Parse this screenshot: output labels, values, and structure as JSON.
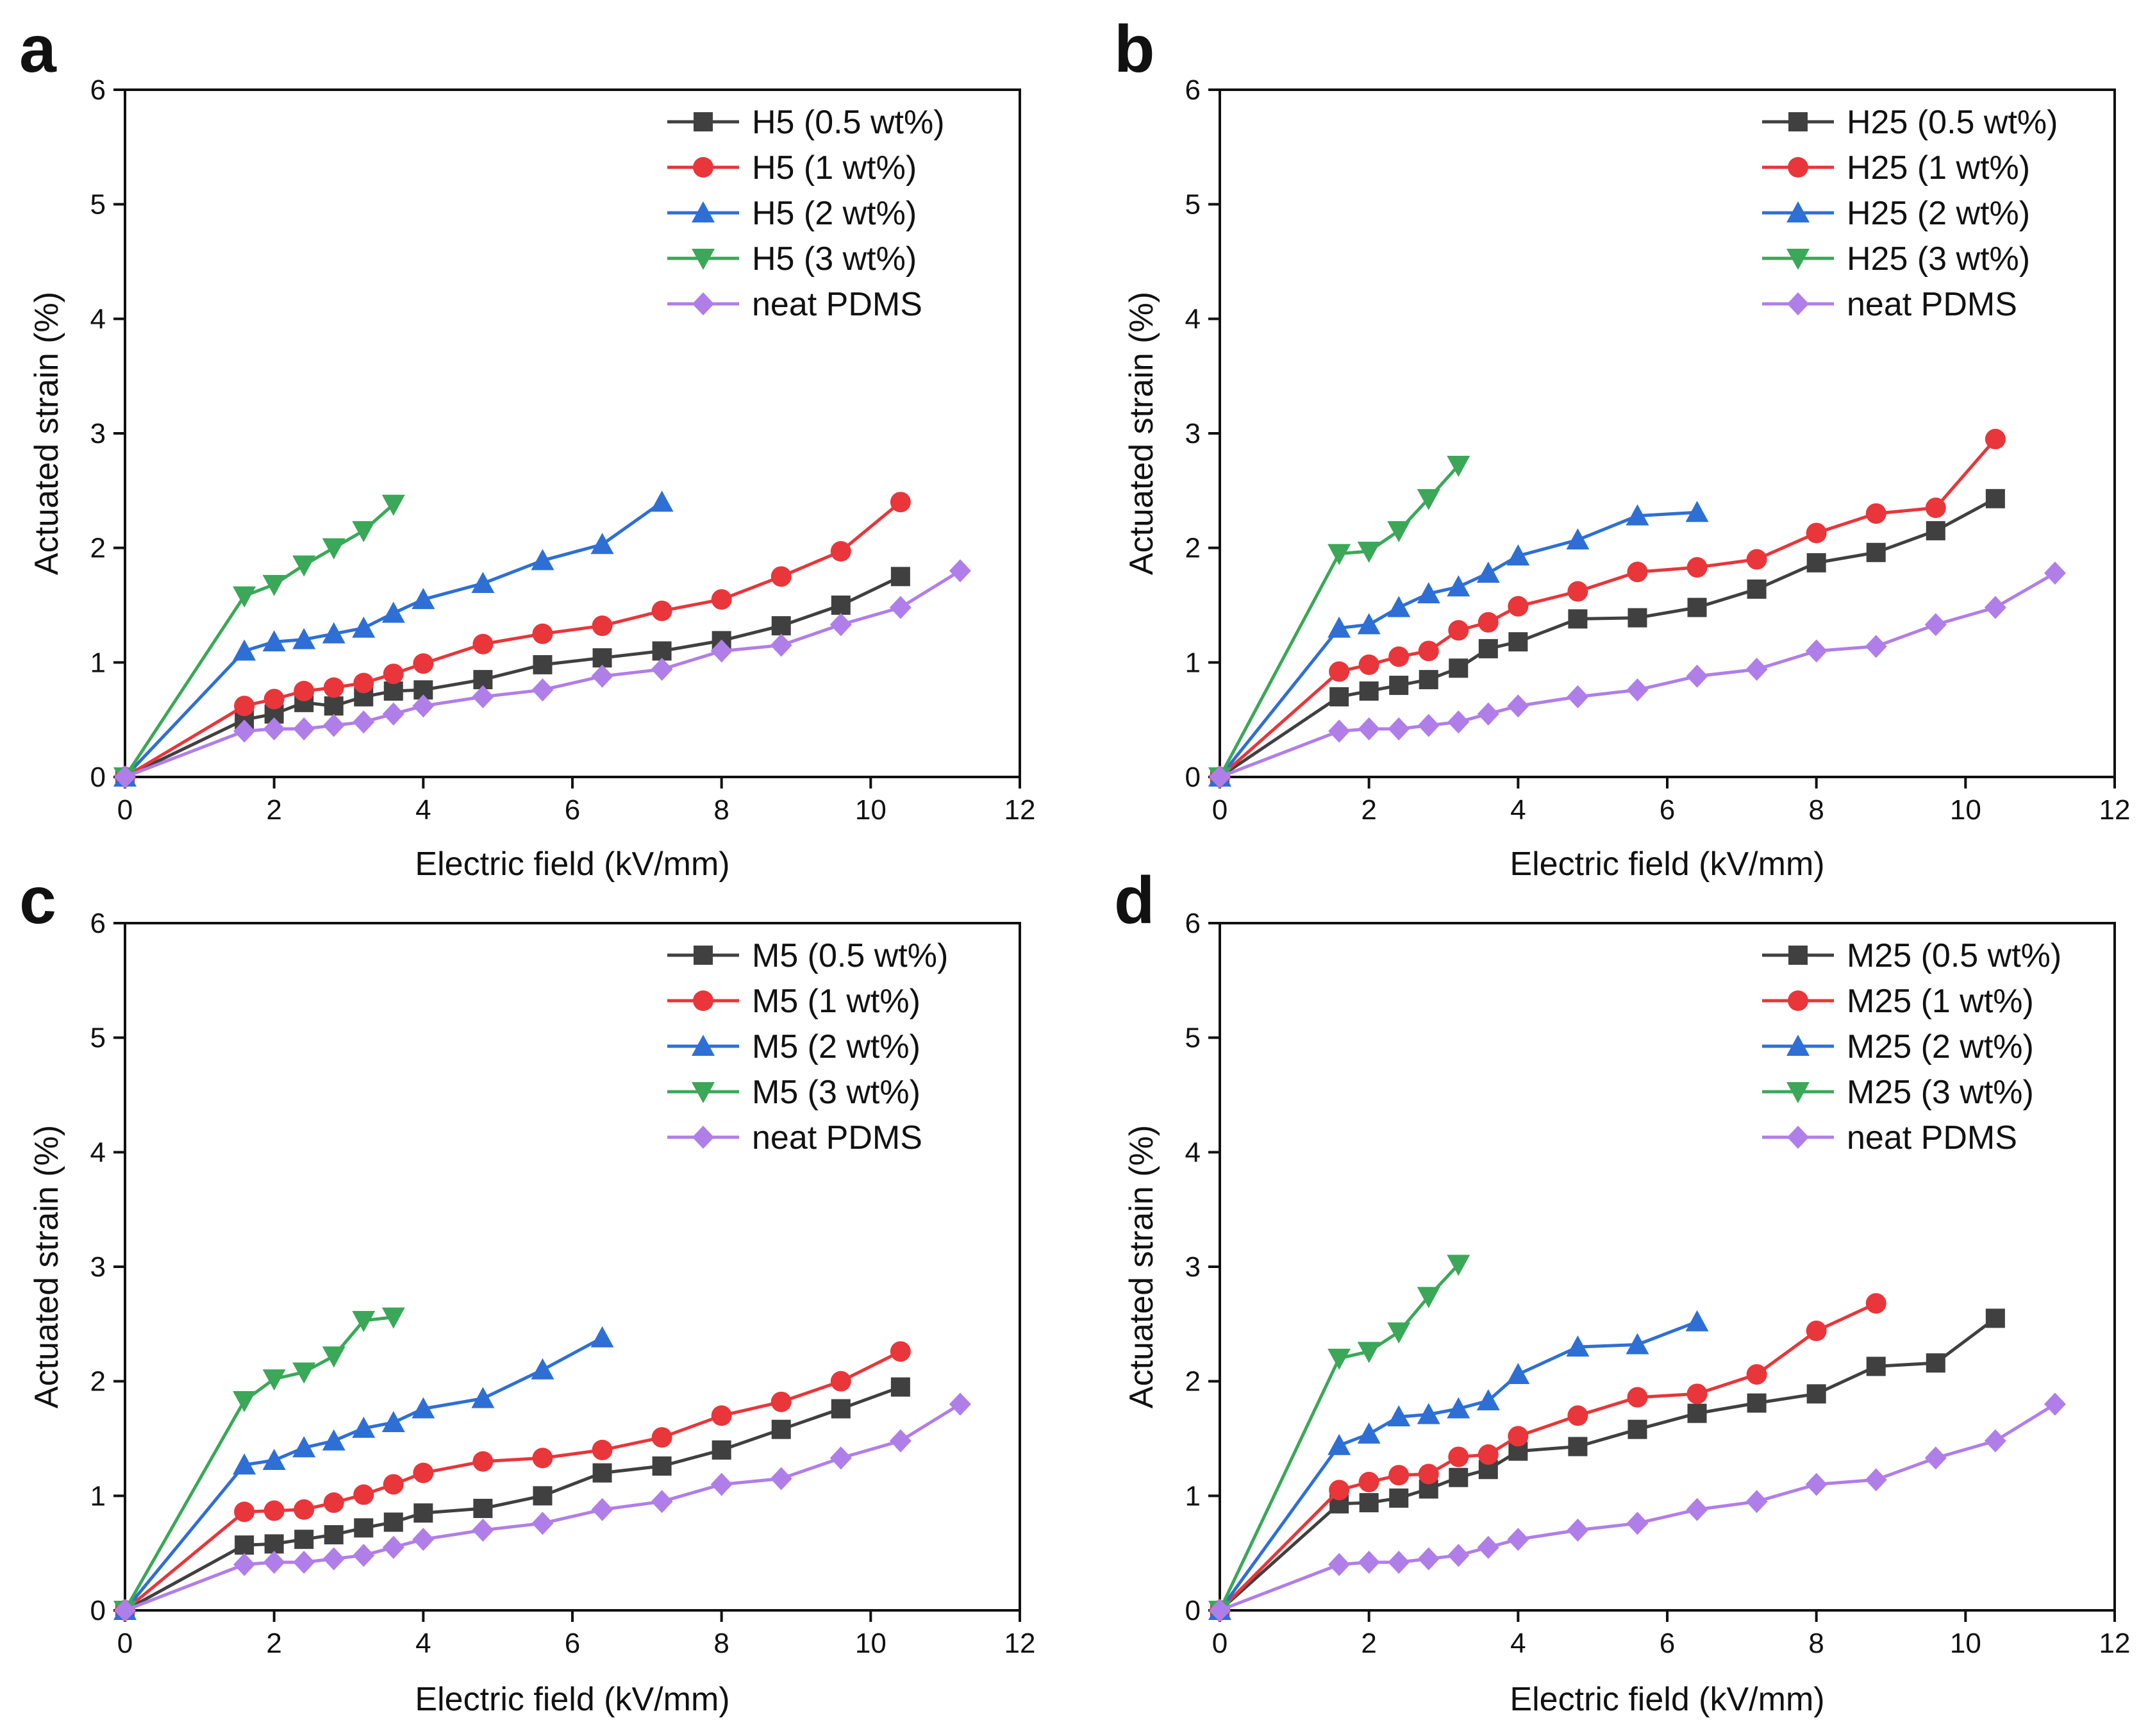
{
  "figure": {
    "background": "#ffffff"
  },
  "chart_data": [
    {
      "panel": "a",
      "type": "line",
      "xlabel": "Electric field (kV/mm)",
      "ylabel": "Actuated strain (%)",
      "xlim": [
        0,
        12
      ],
      "ylim": [
        0,
        6
      ],
      "xticks": [
        0,
        2,
        4,
        6,
        8,
        10,
        12
      ],
      "yticks": [
        0,
        1,
        2,
        3,
        4,
        5,
        6
      ],
      "legend_position": "top-right",
      "series": [
        {
          "name": "H5 (0.5 wt%)",
          "color": "#404040",
          "marker": "square",
          "x": [
            0,
            1.6,
            2,
            2.4,
            2.8,
            3.2,
            3.6,
            4,
            4.8,
            5.6,
            6.4,
            7.2,
            8,
            8.8,
            9.6,
            10.4
          ],
          "y": [
            0,
            0.5,
            0.55,
            0.65,
            0.62,
            0.7,
            0.75,
            0.76,
            0.85,
            0.98,
            1.04,
            1.1,
            1.19,
            1.32,
            1.5,
            1.75
          ]
        },
        {
          "name": "H5 (1 wt%)",
          "color": "#e8363a",
          "marker": "circle",
          "x": [
            0,
            1.6,
            2,
            2.4,
            2.8,
            3.2,
            3.6,
            4,
            4.8,
            5.6,
            6.4,
            7.2,
            8,
            8.8,
            9.6,
            10.4
          ],
          "y": [
            0,
            0.62,
            0.68,
            0.75,
            0.78,
            0.82,
            0.9,
            0.99,
            1.16,
            1.25,
            1.32,
            1.45,
            1.55,
            1.75,
            1.97,
            2.4
          ]
        },
        {
          "name": "H5 (2 wt%)",
          "color": "#2e6fd6",
          "marker": "triangle-up",
          "x": [
            0,
            1.6,
            2,
            2.4,
            2.8,
            3.2,
            3.6,
            4,
            4.8,
            5.6,
            6.4,
            7.2
          ],
          "y": [
            0,
            1.1,
            1.18,
            1.2,
            1.25,
            1.3,
            1.43,
            1.55,
            1.69,
            1.89,
            2.03,
            2.4
          ]
        },
        {
          "name": "H5 (3 wt%)",
          "color": "#3aa858",
          "marker": "triangle-down",
          "x": [
            0,
            1.6,
            2,
            2.4,
            2.8,
            3.2,
            3.6
          ],
          "y": [
            0,
            1.58,
            1.68,
            1.85,
            2.0,
            2.15,
            2.38
          ]
        },
        {
          "name": "neat PDMS",
          "color": "#b07ee8",
          "marker": "diamond",
          "x": [
            0,
            1.6,
            2,
            2.4,
            2.8,
            3.2,
            3.6,
            4,
            4.8,
            5.6,
            6.4,
            7.2,
            8,
            8.8,
            9.6,
            10.4,
            11.2
          ],
          "y": [
            0,
            0.4,
            0.42,
            0.42,
            0.45,
            0.48,
            0.55,
            0.62,
            0.7,
            0.76,
            0.88,
            0.94,
            1.1,
            1.15,
            1.33,
            1.48,
            1.8
          ]
        }
      ]
    },
    {
      "panel": "b",
      "type": "line",
      "xlabel": "Electric field (kV/mm)",
      "ylabel": "Actuated strain (%)",
      "xlim": [
        0,
        12
      ],
      "ylim": [
        0,
        6
      ],
      "xticks": [
        0,
        2,
        4,
        6,
        8,
        10,
        12
      ],
      "yticks": [
        0,
        1,
        2,
        3,
        4,
        5,
        6
      ],
      "legend_position": "top-right",
      "series": [
        {
          "name": "H25 (0.5 wt%)",
          "color": "#404040",
          "marker": "square",
          "x": [
            0,
            1.6,
            2,
            2.4,
            2.8,
            3.2,
            3.6,
            4,
            4.8,
            5.6,
            6.4,
            7.2,
            8,
            8.8,
            9.6,
            10.4
          ],
          "y": [
            0,
            0.7,
            0.75,
            0.8,
            0.85,
            0.95,
            1.12,
            1.18,
            1.38,
            1.39,
            1.48,
            1.64,
            1.87,
            1.96,
            2.15,
            2.43
          ]
        },
        {
          "name": "H25 (1 wt%)",
          "color": "#e8363a",
          "marker": "circle",
          "x": [
            0,
            1.6,
            2,
            2.4,
            2.8,
            3.2,
            3.6,
            4,
            4.8,
            5.6,
            6.4,
            7.2,
            8,
            8.8,
            9.6,
            10.4
          ],
          "y": [
            0,
            0.92,
            0.98,
            1.05,
            1.1,
            1.28,
            1.35,
            1.49,
            1.62,
            1.79,
            1.83,
            1.9,
            2.13,
            2.3,
            2.35,
            2.95
          ]
        },
        {
          "name": "H25 (2 wt%)",
          "color": "#2e6fd6",
          "marker": "triangle-up",
          "x": [
            0,
            1.6,
            2,
            2.4,
            2.8,
            3.2,
            3.6,
            4,
            4.8,
            5.6,
            6.4
          ],
          "y": [
            0,
            1.3,
            1.33,
            1.48,
            1.6,
            1.66,
            1.78,
            1.93,
            2.07,
            2.28,
            2.31
          ]
        },
        {
          "name": "H25 (3 wt%)",
          "color": "#3aa858",
          "marker": "triangle-down",
          "x": [
            0,
            1.6,
            2,
            2.4,
            2.8,
            3.2
          ],
          "y": [
            0,
            1.95,
            1.97,
            2.15,
            2.43,
            2.72
          ]
        },
        {
          "name": "neat PDMS",
          "color": "#b07ee8",
          "marker": "diamond",
          "x": [
            0,
            1.6,
            2,
            2.4,
            2.8,
            3.2,
            3.6,
            4,
            4.8,
            5.6,
            6.4,
            7.2,
            8,
            8.8,
            9.6,
            10.4,
            11.2
          ],
          "y": [
            0,
            0.4,
            0.42,
            0.42,
            0.45,
            0.48,
            0.55,
            0.62,
            0.7,
            0.76,
            0.88,
            0.94,
            1.1,
            1.14,
            1.33,
            1.48,
            1.78
          ]
        }
      ]
    },
    {
      "panel": "c",
      "type": "line",
      "xlabel": "Electric field (kV/mm)",
      "ylabel": "Actuated strain (%)",
      "xlim": [
        0,
        12
      ],
      "ylim": [
        0,
        6
      ],
      "xticks": [
        0,
        2,
        4,
        6,
        8,
        10,
        12
      ],
      "yticks": [
        0,
        1,
        2,
        3,
        4,
        5,
        6
      ],
      "legend_position": "top-right",
      "series": [
        {
          "name": "M5 (0.5 wt%)",
          "color": "#404040",
          "marker": "square",
          "x": [
            0,
            1.6,
            2,
            2.4,
            2.8,
            3.2,
            3.6,
            4,
            4.8,
            5.6,
            6.4,
            7.2,
            8,
            8.8,
            9.6,
            10.4
          ],
          "y": [
            0,
            0.57,
            0.58,
            0.62,
            0.66,
            0.72,
            0.77,
            0.85,
            0.89,
            1.0,
            1.2,
            1.26,
            1.4,
            1.58,
            1.76,
            1.95
          ]
        },
        {
          "name": "M5 (1 wt%)",
          "color": "#e8363a",
          "marker": "circle",
          "x": [
            0,
            1.6,
            2,
            2.4,
            2.8,
            3.2,
            3.6,
            4,
            4.8,
            5.6,
            6.4,
            7.2,
            8,
            8.8,
            9.6,
            10.4
          ],
          "y": [
            0,
            0.86,
            0.87,
            0.88,
            0.94,
            1.01,
            1.1,
            1.2,
            1.3,
            1.33,
            1.4,
            1.51,
            1.7,
            1.82,
            2.0,
            2.26
          ]
        },
        {
          "name": "M5 (2 wt%)",
          "color": "#2e6fd6",
          "marker": "triangle-up",
          "x": [
            0,
            1.6,
            2,
            2.4,
            2.8,
            3.2,
            3.6,
            4,
            4.8,
            5.6,
            6.4
          ],
          "y": [
            0,
            1.27,
            1.31,
            1.42,
            1.48,
            1.59,
            1.64,
            1.76,
            1.85,
            2.1,
            2.38
          ]
        },
        {
          "name": "M5 (3 wt%)",
          "color": "#3aa858",
          "marker": "triangle-down",
          "x": [
            0,
            1.6,
            2,
            2.4,
            2.8,
            3.2,
            3.6
          ],
          "y": [
            0,
            1.83,
            2.02,
            2.08,
            2.22,
            2.53,
            2.56
          ]
        },
        {
          "name": "neat PDMS",
          "color": "#b07ee8",
          "marker": "diamond",
          "x": [
            0,
            1.6,
            2,
            2.4,
            2.8,
            3.2,
            3.6,
            4,
            4.8,
            5.6,
            6.4,
            7.2,
            8,
            8.8,
            9.6,
            10.4,
            11.2
          ],
          "y": [
            0,
            0.4,
            0.42,
            0.42,
            0.45,
            0.48,
            0.55,
            0.62,
            0.7,
            0.76,
            0.88,
            0.95,
            1.1,
            1.15,
            1.33,
            1.48,
            1.8
          ]
        }
      ]
    },
    {
      "panel": "d",
      "type": "line",
      "xlabel": "Electric field (kV/mm)",
      "ylabel": "Actuated strain (%)",
      "xlim": [
        0,
        12
      ],
      "ylim": [
        0,
        6
      ],
      "xticks": [
        0,
        2,
        4,
        6,
        8,
        10,
        12
      ],
      "yticks": [
        0,
        1,
        2,
        3,
        4,
        5,
        6
      ],
      "legend_position": "top-right",
      "series": [
        {
          "name": "M25 (0.5 wt%)",
          "color": "#404040",
          "marker": "square",
          "x": [
            0,
            1.6,
            2,
            2.4,
            2.8,
            3.2,
            3.6,
            4,
            4.8,
            5.6,
            6.4,
            7.2,
            8,
            8.8,
            9.6,
            10.4
          ],
          "y": [
            0,
            0.93,
            0.94,
            0.98,
            1.06,
            1.16,
            1.23,
            1.39,
            1.43,
            1.58,
            1.72,
            1.81,
            1.89,
            2.13,
            2.16,
            2.55
          ]
        },
        {
          "name": "M25 (1 wt%)",
          "color": "#e8363a",
          "marker": "circle",
          "x": [
            0,
            1.6,
            2,
            2.4,
            2.8,
            3.2,
            3.6,
            4,
            4.8,
            5.6,
            6.4,
            7.2,
            8,
            8.8
          ],
          "y": [
            0,
            1.05,
            1.12,
            1.18,
            1.19,
            1.34,
            1.36,
            1.52,
            1.7,
            1.86,
            1.89,
            2.06,
            2.44,
            2.68
          ]
        },
        {
          "name": "M25 (2 wt%)",
          "color": "#2e6fd6",
          "marker": "triangle-up",
          "x": [
            0,
            1.6,
            2,
            2.4,
            2.8,
            3.2,
            3.6,
            4,
            4.8,
            5.6,
            6.4
          ],
          "y": [
            0,
            1.44,
            1.54,
            1.69,
            1.71,
            1.76,
            1.83,
            2.06,
            2.3,
            2.32,
            2.52
          ]
        },
        {
          "name": "M25 (3 wt%)",
          "color": "#3aa858",
          "marker": "triangle-down",
          "x": [
            0,
            1.6,
            2,
            2.4,
            2.8,
            3.2
          ],
          "y": [
            0,
            2.2,
            2.26,
            2.43,
            2.74,
            3.02
          ]
        },
        {
          "name": "neat PDMS",
          "color": "#b07ee8",
          "marker": "diamond",
          "x": [
            0,
            1.6,
            2,
            2.4,
            2.8,
            3.2,
            3.6,
            4,
            4.8,
            5.6,
            6.4,
            7.2,
            8,
            8.8,
            9.6,
            10.4,
            11.2
          ],
          "y": [
            0,
            0.4,
            0.42,
            0.42,
            0.45,
            0.48,
            0.55,
            0.62,
            0.7,
            0.76,
            0.88,
            0.95,
            1.1,
            1.14,
            1.33,
            1.48,
            1.8
          ]
        }
      ]
    }
  ]
}
